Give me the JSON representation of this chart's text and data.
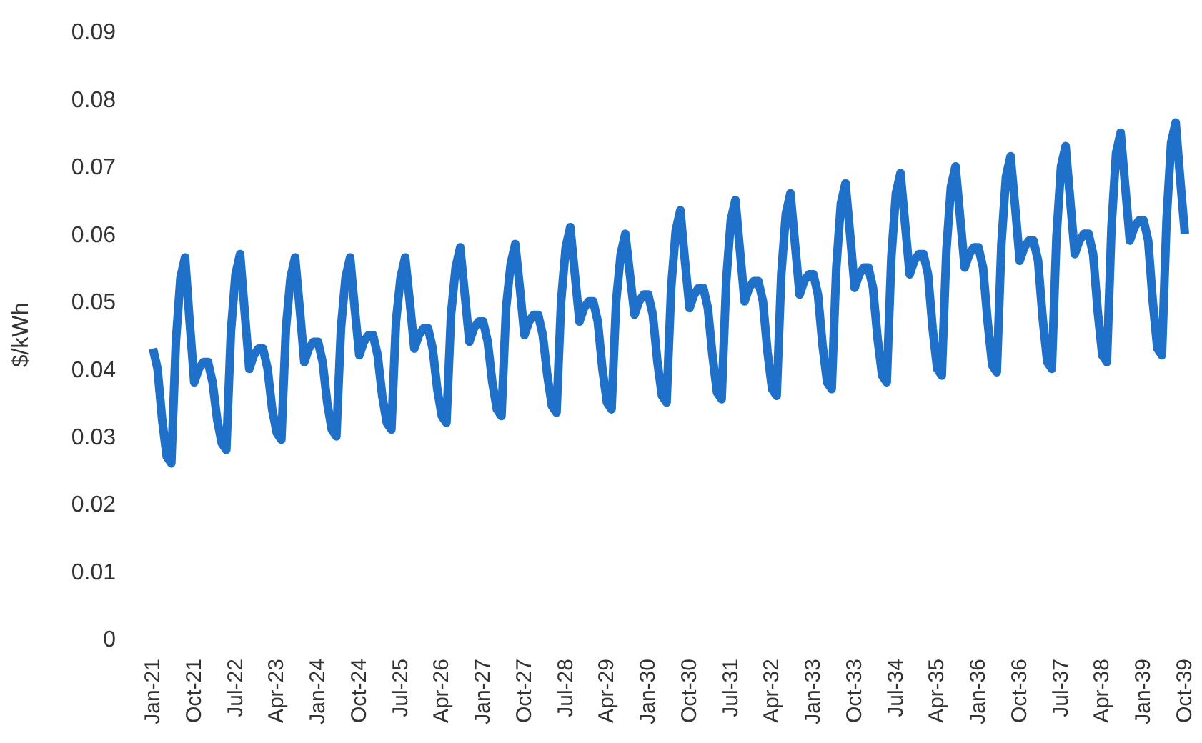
{
  "chart_data": {
    "type": "line",
    "ylabel": "$/kWh",
    "categories": [
      "Jan-21",
      null,
      null,
      null,
      null,
      null,
      null,
      null,
      null,
      "Oct-21",
      null,
      null,
      null,
      null,
      null,
      null,
      null,
      null,
      "Jul-22",
      null,
      null,
      null,
      null,
      null,
      null,
      null,
      null,
      "Apr-23",
      null,
      null,
      null,
      null,
      null,
      null,
      null,
      null,
      "Jan-24",
      null,
      null,
      null,
      null,
      null,
      null,
      null,
      null,
      "Oct-24",
      null,
      null,
      null,
      null,
      null,
      null,
      null,
      null,
      "Jul-25",
      null,
      null,
      null,
      null,
      null,
      null,
      null,
      null,
      "Apr-26",
      null,
      null,
      null,
      null,
      null,
      null,
      null,
      null,
      "Jan-27",
      null,
      null,
      null,
      null,
      null,
      null,
      null,
      null,
      "Oct-27",
      null,
      null,
      null,
      null,
      null,
      null,
      null,
      null,
      "Jul-28",
      null,
      null,
      null,
      null,
      null,
      null,
      null,
      null,
      "Apr-29",
      null,
      null,
      null,
      null,
      null,
      null,
      null,
      null,
      "Jan-30",
      null,
      null,
      null,
      null,
      null,
      null,
      null,
      null,
      "Oct-30",
      null,
      null,
      null,
      null,
      null,
      null,
      null,
      null,
      "Jul-31",
      null,
      null,
      null,
      null,
      null,
      null,
      null,
      null,
      "Apr-32",
      null,
      null,
      null,
      null,
      null,
      null,
      null,
      null,
      "Jan-33",
      null,
      null,
      null,
      null,
      null,
      null,
      null,
      null,
      "Oct-33",
      null,
      null,
      null,
      null,
      null,
      null,
      null,
      null,
      "Jul-34",
      null,
      null,
      null,
      null,
      null,
      null,
      null,
      null,
      "Apr-35",
      null,
      null,
      null,
      null,
      null,
      null,
      null,
      null,
      "Jan-36",
      null,
      null,
      null,
      null,
      null,
      null,
      null,
      null,
      "Oct-36",
      null,
      null,
      null,
      null,
      null,
      null,
      null,
      null,
      "Jul-37",
      null,
      null,
      null,
      null,
      null,
      null,
      null,
      null,
      "Apr-38",
      null,
      null,
      null,
      null,
      null,
      null,
      null,
      null,
      "Jan-39",
      null,
      null,
      null,
      null,
      null,
      null,
      null,
      null,
      "Oct-39"
    ],
    "series": [
      {
        "color": "#1f70c8",
        "values": [
          0.043,
          0.04,
          0.0325,
          0.027,
          0.026,
          0.044,
          0.0535,
          0.0565,
          0.047,
          0.038,
          0.04,
          0.041,
          0.041,
          0.038,
          0.0325,
          0.029,
          0.028,
          0.0455,
          0.054,
          0.057,
          0.0485,
          0.04,
          0.042,
          0.043,
          0.043,
          0.04,
          0.034,
          0.0305,
          0.0295,
          0.046,
          0.0535,
          0.0565,
          0.049,
          0.041,
          0.043,
          0.044,
          0.044,
          0.041,
          0.035,
          0.031,
          0.03,
          0.046,
          0.0535,
          0.0565,
          0.049,
          0.042,
          0.044,
          0.045,
          0.045,
          0.042,
          0.036,
          0.032,
          0.031,
          0.047,
          0.0535,
          0.0565,
          0.05,
          0.043,
          0.045,
          0.046,
          0.046,
          0.043,
          0.037,
          0.033,
          0.032,
          0.048,
          0.055,
          0.058,
          0.051,
          0.044,
          0.046,
          0.047,
          0.047,
          0.044,
          0.038,
          0.034,
          0.033,
          0.049,
          0.0555,
          0.0585,
          0.052,
          0.045,
          0.047,
          0.048,
          0.048,
          0.045,
          0.039,
          0.0345,
          0.0335,
          0.05,
          0.058,
          0.061,
          0.054,
          0.047,
          0.049,
          0.05,
          0.05,
          0.047,
          0.04,
          0.035,
          0.034,
          0.05,
          0.057,
          0.06,
          0.054,
          0.048,
          0.05,
          0.051,
          0.051,
          0.048,
          0.041,
          0.036,
          0.035,
          0.052,
          0.0605,
          0.0635,
          0.056,
          0.049,
          0.051,
          0.052,
          0.052,
          0.049,
          0.042,
          0.0365,
          0.0355,
          0.053,
          0.062,
          0.065,
          0.0575,
          0.05,
          0.052,
          0.053,
          0.053,
          0.05,
          0.0425,
          0.037,
          0.036,
          0.054,
          0.063,
          0.066,
          0.0585,
          0.051,
          0.053,
          0.054,
          0.054,
          0.051,
          0.0435,
          0.038,
          0.037,
          0.055,
          0.0645,
          0.0675,
          0.06,
          0.052,
          0.054,
          0.055,
          0.055,
          0.052,
          0.0445,
          0.039,
          0.038,
          0.0565,
          0.066,
          0.069,
          0.0615,
          0.054,
          0.056,
          0.057,
          0.057,
          0.054,
          0.046,
          0.04,
          0.039,
          0.0575,
          0.067,
          0.07,
          0.0625,
          0.055,
          0.057,
          0.058,
          0.058,
          0.055,
          0.047,
          0.0405,
          0.0395,
          0.0585,
          0.0685,
          0.0715,
          0.064,
          0.056,
          0.058,
          0.059,
          0.059,
          0.056,
          0.0475,
          0.041,
          0.04,
          0.0595,
          0.07,
          0.073,
          0.065,
          0.057,
          0.059,
          0.06,
          0.06,
          0.057,
          0.0485,
          0.042,
          0.041,
          0.061,
          0.072,
          0.075,
          0.067,
          0.059,
          0.061,
          0.062,
          0.062,
          0.059,
          0.05,
          0.043,
          0.042,
          0.062,
          0.0735,
          0.0765,
          0.068,
          0.06
        ]
      }
    ],
    "ylim": [
      0,
      0.09
    ],
    "yticks": [
      0,
      0.01,
      0.02,
      0.03,
      0.04,
      0.05,
      0.06,
      0.07,
      0.08,
      0.09
    ]
  }
}
